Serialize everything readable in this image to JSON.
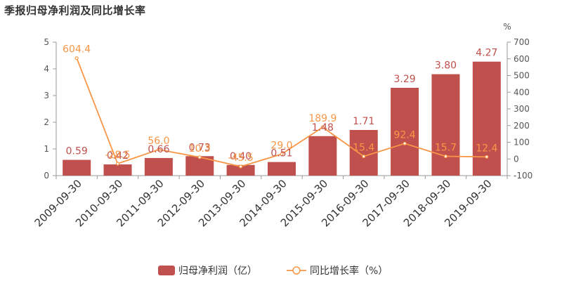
{
  "chart_data": {
    "type": "bar+line",
    "title": "季报归母净利润及同比增长率",
    "categories": [
      "2009-09-30",
      "2010-09-30",
      "2011-09-30",
      "2012-09-30",
      "2013-09-30",
      "2014-09-30",
      "2015-09-30",
      "2016-09-30",
      "2017-09-30",
      "2018-09-30",
      "2019-09-30"
    ],
    "bar_series": {
      "name": "归母净利润（亿）",
      "values": [
        0.59,
        0.42,
        0.66,
        0.73,
        0.4,
        0.51,
        1.48,
        1.71,
        3.29,
        3.8,
        4.27
      ],
      "labels": [
        "0.59",
        "0.42",
        "0.66",
        "0.73",
        "0.40",
        "0.51",
        "1.48",
        "1.71",
        "3.29",
        "3.80",
        "4.27"
      ],
      "color": "#c0504d"
    },
    "line_series": {
      "name": "同比增长率（%）",
      "values": [
        604.4,
        -28.5,
        56.0,
        10.3,
        -45.5,
        29.0,
        189.9,
        15.4,
        92.4,
        15.7,
        12.4
      ],
      "labels": [
        "604.4",
        "-28.5",
        "56.0",
        "10.3",
        "-45.5",
        "29.0",
        "189.9",
        "15.4",
        "92.4",
        "15.7",
        "12.4"
      ],
      "color": "#f79646"
    },
    "y_left": {
      "range": [
        0,
        5
      ],
      "ticks": [
        "0",
        "1",
        "2",
        "3",
        "4",
        "5"
      ]
    },
    "y_right": {
      "range": [
        -100,
        700
      ],
      "ticks": [
        "-100",
        "0",
        "100",
        "200",
        "300",
        "400",
        "500",
        "600",
        "700"
      ],
      "unit": "%"
    },
    "legend": {
      "position": "bottom-center"
    },
    "grid": false
  }
}
